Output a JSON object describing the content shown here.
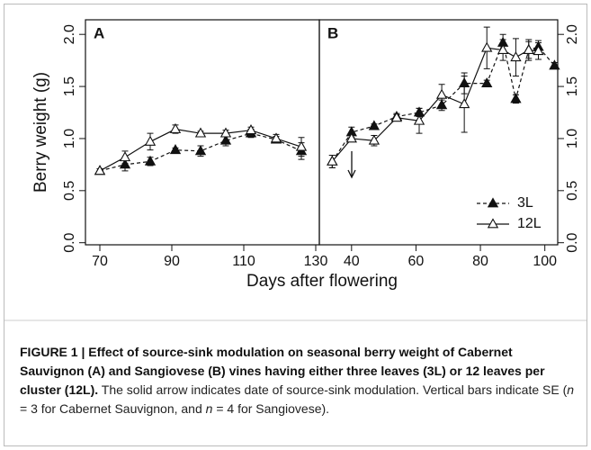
{
  "chart_data": [
    {
      "type": "line",
      "panel": "A",
      "xlim": [
        66,
        131
      ],
      "xticks": [
        70,
        90,
        110,
        130
      ],
      "ylim": [
        -0.02,
        2.14
      ],
      "yticks": [
        {
          "value": 0,
          "label": "0.0"
        },
        0.5,
        {
          "value": 1,
          "label": "1.0"
        },
        1.5,
        {
          "value": 2,
          "label": "2.0"
        }
      ],
      "x": [
        70,
        77,
        84,
        91,
        98,
        105,
        112,
        119,
        126
      ],
      "series": [
        {
          "name": "3L",
          "marker": "filled",
          "dash": true,
          "color": "#111",
          "values": [
            0.69,
            0.75,
            0.78,
            0.89,
            0.88,
            0.98,
            1.05,
            0.99,
            0.88
          ],
          "errors": [
            0.02,
            0.06,
            0.04,
            0.02,
            0.05,
            0.05,
            0.04,
            0.03,
            0.08
          ]
        },
        {
          "name": "12L",
          "marker": "open",
          "dash": false,
          "color": "#111",
          "values": [
            0.69,
            0.82,
            0.97,
            1.09,
            1.05,
            1.05,
            1.08,
            1.0,
            0.92
          ],
          "errors": [
            0.02,
            0.06,
            0.08,
            0.04,
            0.02,
            0.03,
            0.03,
            0.04,
            0.09
          ]
        }
      ]
    },
    {
      "type": "line",
      "panel": "B",
      "xlim": [
        30,
        104
      ],
      "xticks": [
        40,
        60,
        80,
        100
      ],
      "ylim": [
        -0.02,
        2.14
      ],
      "yticks": [
        {
          "value": 0,
          "label": "0.0"
        },
        0.5,
        {
          "value": 1,
          "label": "1.0"
        },
        1.5,
        {
          "value": 2,
          "label": "2.0"
        }
      ],
      "x": [
        34,
        40,
        47,
        54,
        61,
        68,
        75,
        82,
        87,
        91,
        95,
        98,
        103
      ],
      "legend": "lower right",
      "series": [
        {
          "name": "3L",
          "marker": "filled",
          "dash": true,
          "color": "#111",
          "values": [
            0.78,
            1.06,
            1.12,
            1.21,
            1.25,
            1.32,
            1.53,
            1.53,
            1.92,
            1.38,
            1.85,
            1.88,
            1.7
          ],
          "errors": [
            0.06,
            0.05,
            0.02,
            0.03,
            0.04,
            0.05,
            0.1,
            0.03,
            0.08,
            0.04,
            0.08,
            0.06,
            0.03
          ]
        },
        {
          "name": "12L",
          "marker": "open",
          "dash": false,
          "color": "#111",
          "values": [
            0.78,
            1.0,
            0.98,
            1.2,
            1.17,
            1.42,
            1.33,
            1.87,
            1.85,
            1.78,
            1.85,
            1.84,
            null
          ],
          "errors": [
            0.06,
            0.03,
            0.05,
            0.03,
            0.12,
            0.1,
            0.27,
            0.2,
            0.1,
            0.18,
            0.1,
            0.08,
            null
          ]
        }
      ]
    }
  ],
  "ylabel": "Berry weight (g)",
  "xlabel": "Days after flowering",
  "caption": {
    "bold": "FIGURE 1 | Effect of source-sink modulation on seasonal berry weight of Cabernet Sauvignon (A) and Sangiovese (B) vines having either three leaves (3L) or 12 leaves per cluster (12L).",
    "part1": " The solid arrow indicates date of source-sink modulation. Vertical bars indicate SE (",
    "n1": "n",
    "part2": " = 3 for Cabernet Sauvignon, and ",
    "n2": "n",
    "part3": " = 4 for Sangiovese)."
  }
}
